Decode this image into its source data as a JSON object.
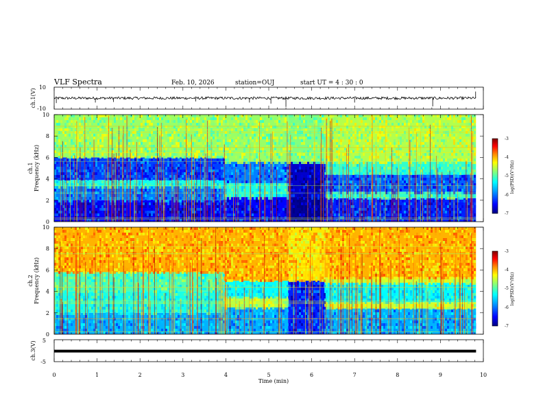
{
  "header": {
    "title": "VLF Spectra",
    "date": "Feb. 10, 2026",
    "station": "station=OUJ",
    "start_ut": "start  UT =   4 : 30 : 0"
  },
  "chart_data": [
    {
      "type": "line",
      "name": "ch1-waveform",
      "ylabel": "ch.1(V)",
      "ylim": [
        -10,
        10
      ],
      "ytick_labels": [
        "10",
        "-10"
      ],
      "x_range_min": [
        0,
        9.83
      ],
      "baseline_v": 0,
      "spikes": [
        {
          "t": 0.05,
          "v": -4.5
        },
        {
          "t": 0.96,
          "v": -4.0
        },
        {
          "t": 1.38,
          "v": -3.5
        },
        {
          "t": 3.3,
          "v": -3.0
        },
        {
          "t": 4.55,
          "v": -4.0
        },
        {
          "t": 5.05,
          "v": -5.0
        },
        {
          "t": 5.4,
          "v": -8.0
        },
        {
          "t": 7.0,
          "v": -4.0
        },
        {
          "t": 8.82,
          "v": -7.5
        },
        {
          "t": 9.82,
          "v": 6.0
        }
      ]
    },
    {
      "type": "heatmap",
      "name": "ch1-spectrogram",
      "ylabel_lines": [
        "ch.1",
        "Frequency  (kHz)"
      ],
      "xlim": [
        0,
        10
      ],
      "ylim": [
        0,
        10
      ],
      "yticks": [
        0,
        2,
        4,
        6,
        8,
        10
      ],
      "data_extent_min": 9.83,
      "colorbar": {
        "range": [
          -7,
          -3
        ],
        "ticks": [
          "-3",
          "-4",
          "-5",
          "-6",
          "-7"
        ],
        "label": "log(PSD)(V²/Hz)"
      },
      "segments": [
        {
          "t0": 0,
          "t1": 3.95,
          "background": [
            {
              "f0": 0,
              "f1": 2.0,
              "level": -6.5
            },
            {
              "f0": 2.0,
              "f1": 3.3,
              "level": -6.1
            },
            {
              "f0": 3.3,
              "f1": 3.9,
              "level": -5.4
            },
            {
              "f0": 3.9,
              "f1": 6.0,
              "level": -6.3
            },
            {
              "f0": 6.0,
              "f1": 10,
              "level": -4.9
            }
          ]
        },
        {
          "t0": 3.95,
          "t1": 5.45,
          "background": [
            {
              "f0": 0,
              "f1": 2.3,
              "level": -6.5
            },
            {
              "f0": 2.3,
              "f1": 3.6,
              "level": -5.4
            },
            {
              "f0": 3.6,
              "f1": 5.6,
              "level": -6.1
            },
            {
              "f0": 5.6,
              "f1": 10,
              "level": -4.9
            }
          ]
        },
        {
          "t0": 5.45,
          "t1": 6.3,
          "background": [
            {
              "f0": 0,
              "f1": 2.3,
              "level": -6.9
            },
            {
              "f0": 2.3,
              "f1": 5.6,
              "level": -6.7
            },
            {
              "f0": 5.6,
              "f1": 10,
              "level": -5.0
            }
          ]
        },
        {
          "t0": 6.3,
          "t1": 9.83,
          "background": [
            {
              "f0": 0,
              "f1": 2.2,
              "level": -6.4
            },
            {
              "f0": 2.2,
              "f1": 2.8,
              "level": -5.3
            },
            {
              "f0": 2.8,
              "f1": 4.4,
              "level": -6.2
            },
            {
              "f0": 4.4,
              "f1": 5.6,
              "level": -5.3
            },
            {
              "f0": 5.6,
              "f1": 10,
              "level": -4.8
            }
          ]
        }
      ]
    },
    {
      "type": "heatmap",
      "name": "ch2-spectrogram",
      "ylabel_lines": [
        "ch.2",
        "Frequency  (kHz)"
      ],
      "xlim": [
        0,
        10
      ],
      "ylim": [
        0,
        10
      ],
      "yticks": [
        0,
        2,
        4,
        6,
        8,
        10
      ],
      "data_extent_min": 9.83,
      "colorbar": {
        "range": [
          -7,
          -3
        ],
        "ticks": [
          "-3",
          "-4",
          "-5",
          "-6",
          "-7"
        ],
        "label": "log(PSD)(V²/Hz)"
      },
      "segments": [
        {
          "t0": 0,
          "t1": 3.95,
          "background": [
            {
              "f0": 0,
              "f1": 2.0,
              "level": -5.9
            },
            {
              "f0": 2.0,
              "f1": 4.0,
              "level": -5.4
            },
            {
              "f0": 4.0,
              "f1": 5.8,
              "level": -5.2
            },
            {
              "f0": 5.8,
              "f1": 10,
              "level": -4.2
            }
          ]
        },
        {
          "t0": 3.95,
          "t1": 5.45,
          "background": [
            {
              "f0": 0,
              "f1": 2.5,
              "level": -5.9
            },
            {
              "f0": 2.5,
              "f1": 3.5,
              "level": -4.8
            },
            {
              "f0": 3.5,
              "f1": 5.0,
              "level": -5.5
            },
            {
              "f0": 5.0,
              "f1": 10,
              "level": -4.2
            }
          ]
        },
        {
          "t0": 5.45,
          "t1": 6.3,
          "background": [
            {
              "f0": 0,
              "f1": 5.0,
              "level": -6.4
            },
            {
              "f0": 5.0,
              "f1": 10,
              "level": -4.4
            }
          ]
        },
        {
          "t0": 6.3,
          "t1": 9.83,
          "background": [
            {
              "f0": 0,
              "f1": 2.4,
              "level": -5.9
            },
            {
              "f0": 2.4,
              "f1": 3.0,
              "level": -4.7
            },
            {
              "f0": 3.0,
              "f1": 4.8,
              "level": -5.5
            },
            {
              "f0": 4.8,
              "f1": 5.3,
              "level": -4.7
            },
            {
              "f0": 5.3,
              "f1": 10,
              "level": -4.2
            }
          ]
        }
      ]
    },
    {
      "type": "line",
      "name": "ch3-waveform",
      "ylabel": "ch.3(V)",
      "ylim": [
        -5,
        5
      ],
      "ytick_labels": [
        "5",
        "-5"
      ],
      "x_range_min": [
        0,
        9.83
      ],
      "baseline_v": -0.2
    }
  ],
  "x_axis": {
    "label": "Time  (min)",
    "xlim": [
      0,
      10
    ],
    "ticks": [
      "0",
      "1",
      "2",
      "3",
      "4",
      "5",
      "6",
      "7",
      "8",
      "9",
      "10"
    ]
  },
  "colormap": [
    "#000080",
    "#0000ff",
    "#00a0ff",
    "#00ffff",
    "#80ff80",
    "#ffff00",
    "#ff8000",
    "#ff0000",
    "#800000"
  ]
}
